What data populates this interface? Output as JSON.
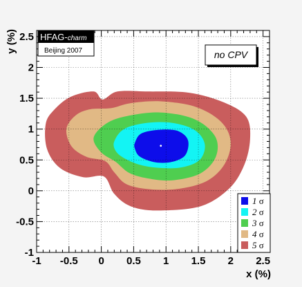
{
  "chart_data": {
    "type": "contour",
    "title": "",
    "xlabel": "x (%)",
    "ylabel": "y (%)",
    "xlim": [
      -1,
      2.6
    ],
    "ylim": [
      -1,
      2.6
    ],
    "x_ticks": [
      -1,
      -0.5,
      0,
      0.5,
      1,
      1.5,
      2,
      2.5
    ],
    "y_ticks": [
      -1,
      -0.5,
      0,
      0.5,
      1,
      1.5,
      2,
      2.5
    ],
    "x_tick_labels": [
      "-1",
      "-0.5",
      "0",
      "0.5",
      "1",
      "1.5",
      "2",
      "2.5"
    ],
    "y_tick_labels": [
      "-1",
      "-0.5",
      "0",
      "0.5",
      "1",
      "1.5",
      "2",
      "2.5"
    ],
    "grid": true,
    "best_fit": {
      "x": 0.92,
      "y": 0.73
    },
    "badge": {
      "title": "HFAG-",
      "title_suffix": "charm",
      "subtitle": "Beijing 2007"
    },
    "annotation": "no CPV",
    "legend": {
      "placement": "bottom-right",
      "entries": [
        {
          "n": "1",
          "sym": "σ",
          "color": "#0d0dea"
        },
        {
          "n": "2",
          "sym": "σ",
          "color": "#13f4f4"
        },
        {
          "n": "3",
          "sym": "σ",
          "color": "#4fce50"
        },
        {
          "n": "4",
          "sym": "σ",
          "color": "#e1b985"
        },
        {
          "n": "5",
          "sym": "σ",
          "color": "#c95d5d"
        }
      ]
    },
    "contours": [
      {
        "level": "5 sigma",
        "color": "#c95d5d",
        "points": [
          [
            -0.86,
            1.08
          ],
          [
            -0.74,
            1.3
          ],
          [
            -0.48,
            1.52
          ],
          [
            -0.12,
            1.61
          ],
          [
            0.02,
            1.48
          ],
          [
            0.25,
            1.61
          ],
          [
            0.72,
            1.61
          ],
          [
            1.36,
            1.59
          ],
          [
            1.9,
            1.43
          ],
          [
            2.24,
            1.2
          ],
          [
            2.3,
            0.84
          ],
          [
            2.21,
            0.42
          ],
          [
            1.98,
            0.04
          ],
          [
            1.54,
            -0.25
          ],
          [
            0.86,
            -0.32
          ],
          [
            0.45,
            -0.25
          ],
          [
            0.2,
            -0.05
          ],
          [
            0.04,
            0.23
          ],
          [
            -0.28,
            0.22
          ],
          [
            -0.64,
            0.37
          ],
          [
            -0.84,
            0.68
          ]
        ]
      },
      {
        "level": "4 sigma",
        "color": "#e1b985",
        "points": [
          [
            -0.54,
            1.0
          ],
          [
            -0.4,
            1.22
          ],
          [
            -0.18,
            1.32
          ],
          [
            0.15,
            1.34
          ],
          [
            0.45,
            1.42
          ],
          [
            0.92,
            1.45
          ],
          [
            1.46,
            1.36
          ],
          [
            1.85,
            1.12
          ],
          [
            2.0,
            0.8
          ],
          [
            1.91,
            0.44
          ],
          [
            1.65,
            0.17
          ],
          [
            1.25,
            0.04
          ],
          [
            0.8,
            0.02
          ],
          [
            0.4,
            0.1
          ],
          [
            0.2,
            0.3
          ],
          [
            0.06,
            0.48
          ],
          [
            -0.23,
            0.55
          ],
          [
            -0.46,
            0.72
          ]
        ]
      },
      {
        "level": "3 sigma",
        "color": "#4fce50",
        "points": [
          [
            -0.12,
            0.85
          ],
          [
            0.05,
            1.07
          ],
          [
            0.35,
            1.2
          ],
          [
            0.9,
            1.27
          ],
          [
            1.44,
            1.16
          ],
          [
            1.76,
            0.88
          ],
          [
            1.77,
            0.55
          ],
          [
            1.53,
            0.28
          ],
          [
            1.1,
            0.17
          ],
          [
            0.72,
            0.2
          ],
          [
            0.43,
            0.29
          ],
          [
            0.22,
            0.47
          ],
          [
            0.0,
            0.62
          ]
        ]
      },
      {
        "level": "2 sigma",
        "color": "#13f4f4",
        "points": [
          [
            0.2,
            0.8
          ],
          [
            0.35,
            1.0
          ],
          [
            0.7,
            1.1
          ],
          [
            1.1,
            1.1
          ],
          [
            1.45,
            0.98
          ],
          [
            1.6,
            0.75
          ],
          [
            1.52,
            0.5
          ],
          [
            1.25,
            0.38
          ],
          [
            0.9,
            0.37
          ],
          [
            0.6,
            0.42
          ],
          [
            0.35,
            0.53
          ],
          [
            0.22,
            0.65
          ]
        ]
      },
      {
        "level": "1 sigma",
        "color": "#0d0dea",
        "points": [
          [
            0.52,
            0.78
          ],
          [
            0.62,
            0.93
          ],
          [
            0.9,
            0.99
          ],
          [
            1.18,
            0.97
          ],
          [
            1.34,
            0.82
          ],
          [
            1.3,
            0.58
          ],
          [
            1.1,
            0.47
          ],
          [
            0.84,
            0.46
          ],
          [
            0.6,
            0.55
          ],
          [
            0.52,
            0.68
          ]
        ]
      }
    ]
  }
}
